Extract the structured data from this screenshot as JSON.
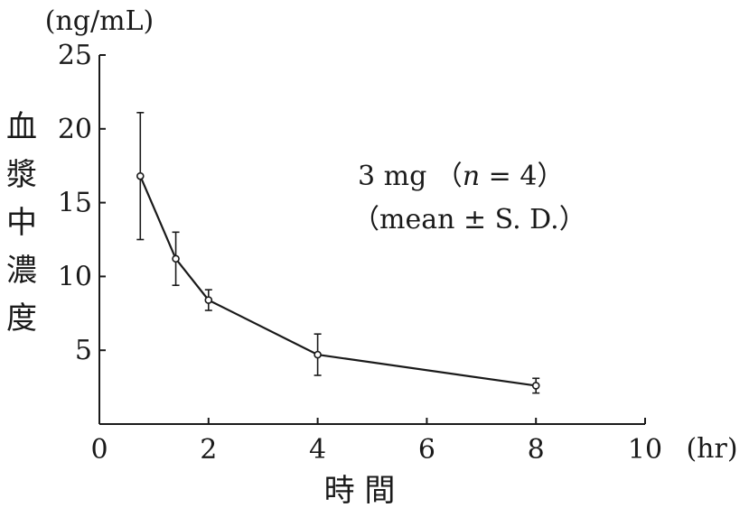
{
  "chart_data": {
    "type": "line",
    "x": [
      0.75,
      1.4,
      2.0,
      4.0,
      8.0
    ],
    "y": [
      16.8,
      11.2,
      8.4,
      4.7,
      2.6
    ],
    "error": [
      4.3,
      1.8,
      0.7,
      1.4,
      0.5
    ],
    "xlim": [
      0,
      10
    ],
    "ylim": [
      0,
      25
    ],
    "xticks": [
      0,
      2,
      4,
      6,
      8,
      10
    ],
    "yticks": [
      5,
      10,
      15,
      20,
      25
    ],
    "xlabel": "時 間",
    "ylabel": "血漿中濃度",
    "x_unit": "(hr)",
    "y_unit": "(ng/mL)",
    "annotation": {
      "line1_prefix": "3 mg （",
      "line1_var": "n",
      "line1_suffix": " = 4）",
      "line2": "（mean ± S. D.）"
    },
    "marker": "open-circle",
    "color": "#1a1a1a",
    "grid": false
  }
}
